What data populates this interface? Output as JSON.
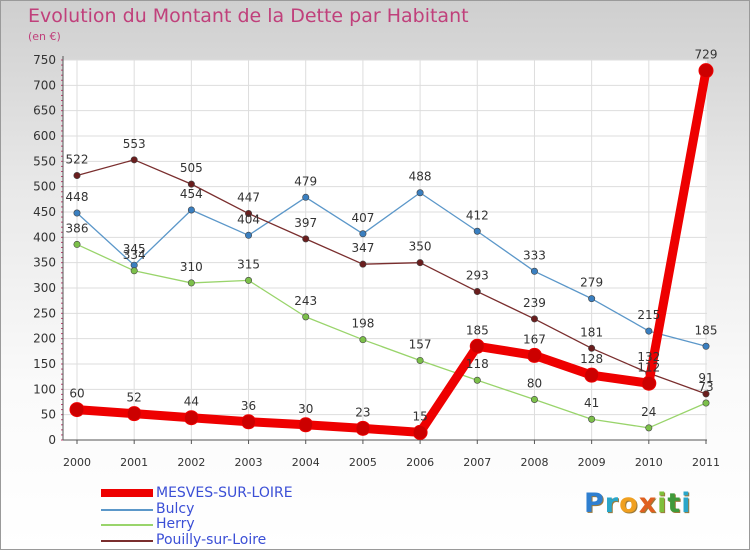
{
  "header": {
    "title": "Evolution du Montant de la Dette par Habitant",
    "unit": "(en €)"
  },
  "brand": {
    "text": "Proxiti",
    "letters": [
      {
        "ch": "P",
        "color": "#2f7fd0"
      },
      {
        "ch": "r",
        "color": "#2aa6c9"
      },
      {
        "ch": "o",
        "color": "#f0a020"
      },
      {
        "ch": "x",
        "color": "#e06020"
      },
      {
        "ch": "i",
        "color": "#7fbf3a"
      },
      {
        "ch": "t",
        "color": "#3f9a3a"
      },
      {
        "ch": "i",
        "color": "#2aa6c9"
      }
    ]
  },
  "chart_data": {
    "type": "line",
    "title": "Evolution du Montant de la Dette par Habitant",
    "ylabel": "(en €)",
    "xlabel": "",
    "ylim": [
      0,
      750
    ],
    "yticks": [
      0,
      50,
      100,
      150,
      200,
      250,
      300,
      350,
      400,
      450,
      500,
      550,
      600,
      650,
      700,
      750
    ],
    "categories": [
      "2000",
      "2001",
      "2002",
      "2003",
      "2004",
      "2005",
      "2006",
      "2007",
      "2008",
      "2009",
      "2010",
      "2011"
    ],
    "grid": true,
    "legend_position": "bottom-left",
    "series": [
      {
        "name": "MESVES-SUR-LOIRE",
        "color": "#ee0000",
        "dot": "#cc0000",
        "width": "thick",
        "values": [
          60,
          52,
          44,
          36,
          30,
          23,
          15,
          185,
          167,
          128,
          112,
          729
        ],
        "labels": [
          "60",
          "52",
          "44",
          "36",
          "30",
          "23",
          "15",
          "185",
          "167",
          "128",
          "112",
          "729"
        ]
      },
      {
        "name": "Bulcy",
        "color": "#5b97c9",
        "dot": "#3a7fc0",
        "width": "thin",
        "values": [
          448,
          345,
          454,
          404,
          479,
          407,
          488,
          412,
          333,
          279,
          215,
          185
        ],
        "labels": [
          "448",
          "345",
          "454",
          "404",
          "479",
          "407",
          "488",
          "412",
          "333",
          "279",
          "215",
          "185"
        ]
      },
      {
        "name": "Herry",
        "color": "#99d46b",
        "dot": "#7cc04a",
        "width": "thin",
        "values": [
          386,
          334,
          310,
          315,
          243,
          198,
          157,
          118,
          80,
          41,
          24,
          73
        ],
        "labels": [
          "386",
          "334",
          "310",
          "315",
          "243",
          "198",
          "157",
          "118",
          "80",
          "41",
          "24",
          "73"
        ]
      },
      {
        "name": "Pouilly-sur-Loire",
        "color": "#7a2e2e",
        "dot": "#6a1e1e",
        "width": "thin",
        "values": [
          522,
          553,
          505,
          447,
          397,
          347,
          350,
          293,
          239,
          181,
          132,
          91
        ],
        "labels": [
          "522",
          "553",
          "505",
          "447",
          "397",
          "347",
          "350",
          "293",
          "239",
          "181",
          "132",
          "91"
        ]
      }
    ]
  }
}
